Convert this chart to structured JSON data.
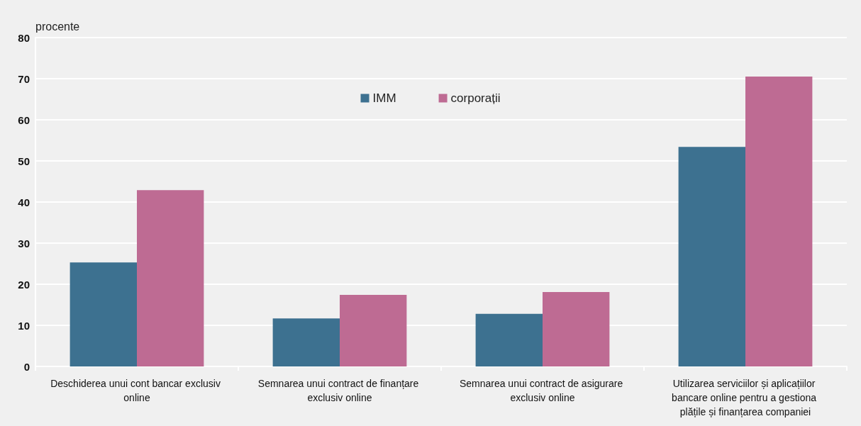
{
  "chart_data": {
    "type": "bar",
    "ylabel": "procente",
    "categories": [
      "Deschiderea unui cont bancar exclusiv online",
      "Semnarea unui contract de finanțare exclusiv online",
      "Semnarea unui contract de asigurare exclusiv online",
      "Utilizarea serviciilor și aplicațiilor bancare online pentru a gestiona plățile și finanțarea companiei"
    ],
    "series": [
      {
        "name": "IMM",
        "color": "#3d7190",
        "values": [
          25.3,
          11.7,
          12.8,
          53.4
        ]
      },
      {
        "name": "corporații",
        "color": "#be6b93",
        "values": [
          42.9,
          17.4,
          18.1,
          70.5
        ]
      }
    ],
    "ylim": [
      0,
      80
    ],
    "yticks": [
      0,
      10,
      20,
      30,
      40,
      50,
      60,
      70,
      80
    ],
    "grid": "y",
    "legend": "top"
  }
}
